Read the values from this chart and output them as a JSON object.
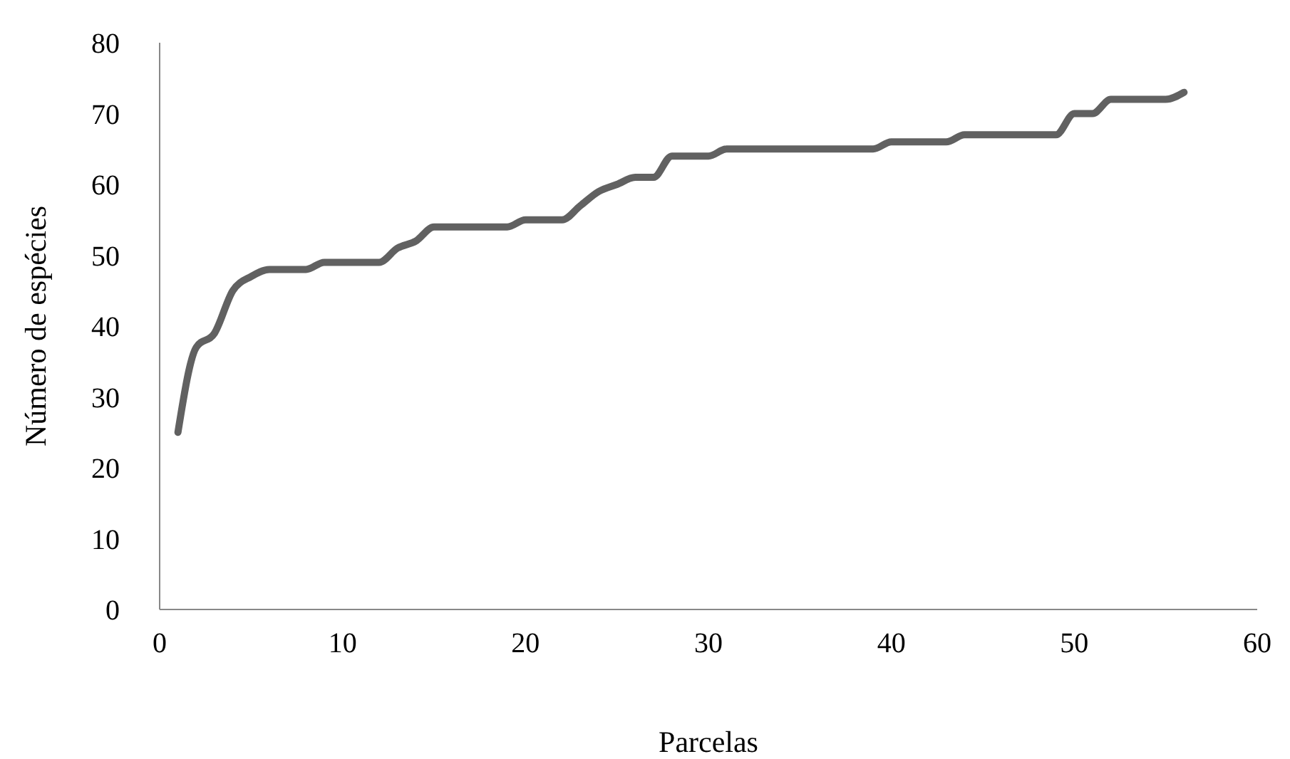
{
  "chart_data": {
    "type": "line",
    "xlabel": "Parcelas",
    "ylabel": "Número de espécies",
    "x": [
      1,
      2,
      3,
      4,
      5,
      6,
      7,
      8,
      9,
      10,
      11,
      12,
      13,
      14,
      15,
      16,
      17,
      18,
      19,
      20,
      21,
      22,
      23,
      24,
      25,
      26,
      27,
      28,
      29,
      30,
      31,
      32,
      33,
      34,
      35,
      36,
      37,
      38,
      39,
      40,
      41,
      42,
      43,
      44,
      45,
      46,
      47,
      48,
      49,
      50,
      51,
      52,
      53,
      54,
      55,
      56
    ],
    "series": [
      {
        "color": "#616161",
        "values": [
          25,
          37,
          39,
          45,
          47,
          48,
          48,
          48,
          49,
          49,
          49,
          49,
          51,
          52,
          54,
          54,
          54,
          54,
          54,
          55,
          55,
          55,
          57,
          59,
          60,
          61,
          61,
          64,
          64,
          64,
          65,
          65,
          65,
          65,
          65,
          65,
          65,
          65,
          65,
          66,
          66,
          66,
          66,
          67,
          67,
          67,
          67,
          67,
          67,
          70,
          70,
          72,
          72,
          72,
          72,
          73
        ]
      }
    ],
    "xlim": [
      0,
      60
    ],
    "xticks": [
      0,
      10,
      20,
      30,
      40,
      50,
      60
    ],
    "ylim": [
      0,
      80
    ],
    "yticks": [
      0,
      10,
      20,
      30,
      40,
      50,
      60,
      70,
      80
    ],
    "grid": false,
    "marker": "none",
    "line_style": "solid"
  }
}
